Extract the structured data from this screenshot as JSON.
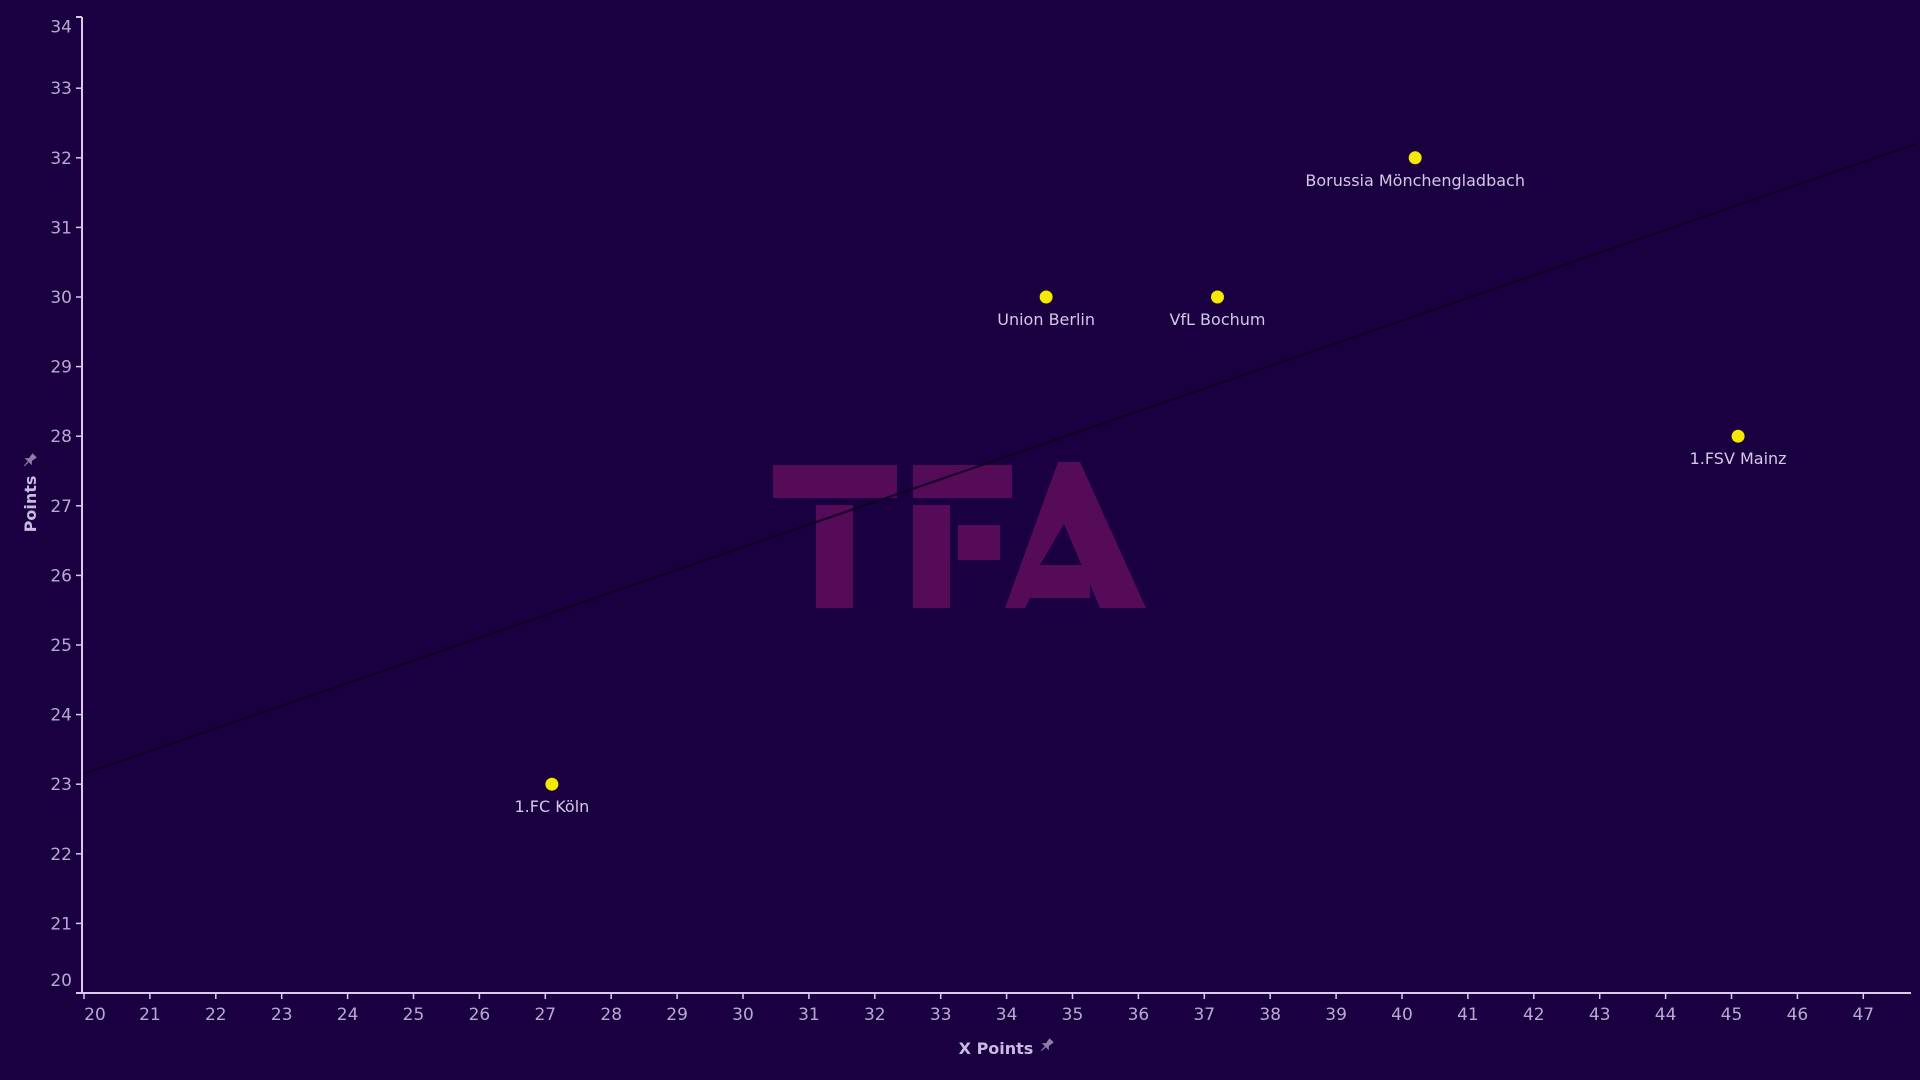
{
  "chart_data": {
    "type": "scatter",
    "title": "",
    "xlabel": "X Points",
    "ylabel": "Points",
    "xlim": [
      20,
      47.8
    ],
    "ylim": [
      20,
      34
    ],
    "x_ticks": [
      20,
      21,
      22,
      23,
      24,
      25,
      26,
      27,
      28,
      29,
      30,
      31,
      32,
      33,
      34,
      35,
      36,
      37,
      38,
      39,
      40,
      41,
      42,
      43,
      44,
      45,
      46,
      47
    ],
    "y_ticks": [
      20,
      21,
      22,
      23,
      24,
      25,
      26,
      27,
      28,
      29,
      30,
      31,
      32,
      33,
      34
    ],
    "grid": false,
    "legend": null,
    "points": [
      {
        "label": "Borussia Mönchengladbach",
        "x": 40.2,
        "y": 32
      },
      {
        "label": "Union Berlin",
        "x": 34.6,
        "y": 30
      },
      {
        "label": "VfL Bochum",
        "x": 37.2,
        "y": 30
      },
      {
        "label": "1.FSV Mainz",
        "x": 45.1,
        "y": 28
      },
      {
        "label": "1.FC Köln",
        "x": 27.1,
        "y": 23
      }
    ],
    "trend_line": {
      "x": [
        20,
        47.8
      ],
      "y": [
        23.15,
        32.2
      ]
    },
    "watermark": "TFA"
  },
  "colors": {
    "background": "#1a0040",
    "point": "#f5e900",
    "axis": "#d9cbe9",
    "trend_line": "#0d0020",
    "watermark": "#560b58"
  },
  "axes": {
    "x_title": "X Points",
    "y_title": "Points",
    "pin_icon": "pin-icon"
  }
}
